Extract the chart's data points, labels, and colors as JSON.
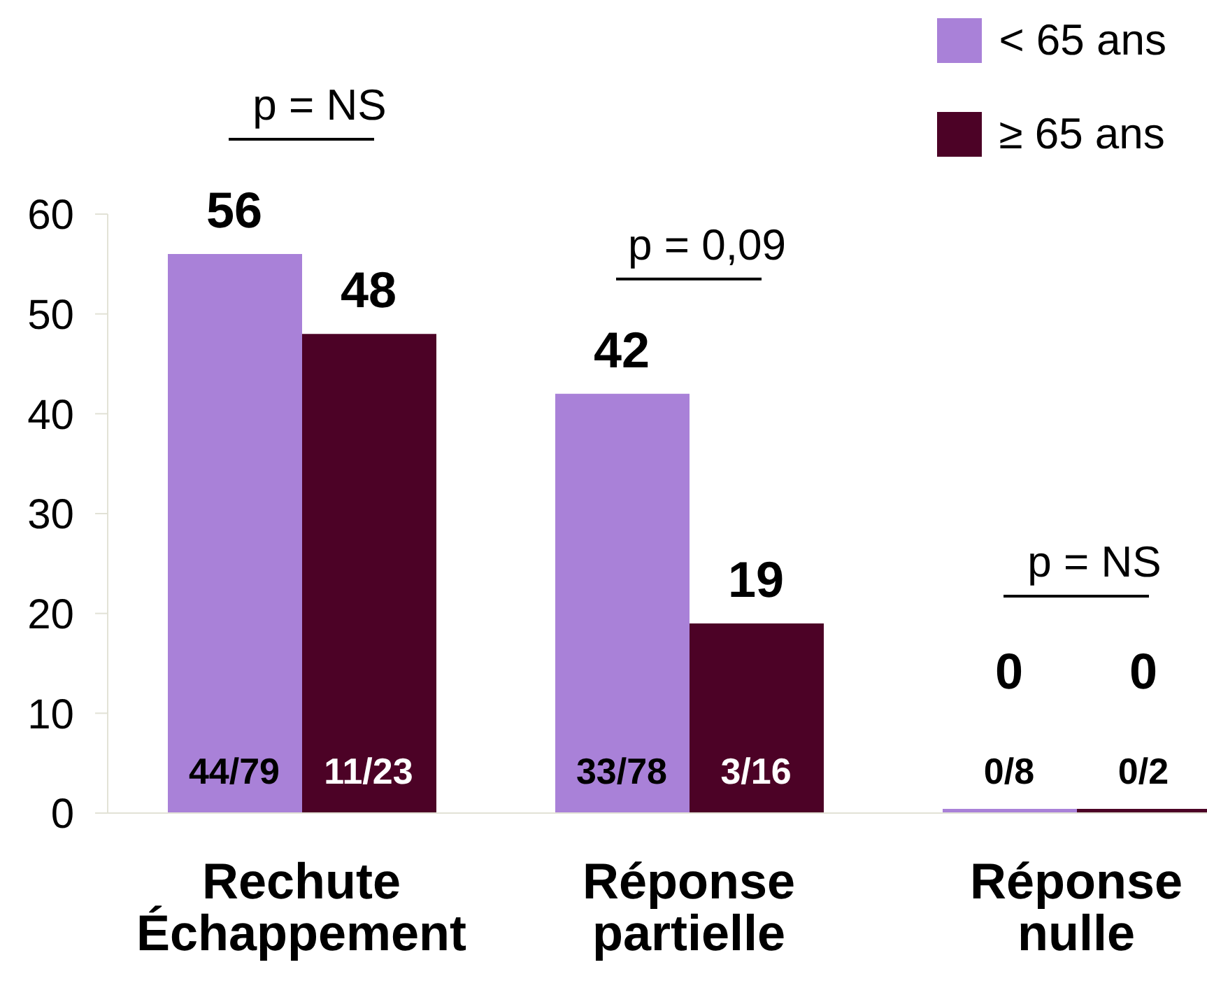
{
  "chart_data": {
    "type": "bar",
    "categories": [
      "Rechute Échappement",
      "Réponse partielle",
      "Réponse nulle"
    ],
    "series": [
      {
        "name": "< 65 ans",
        "color": "#a981d8",
        "values": [
          56,
          42,
          0
        ]
      },
      {
        "name": "≥ 65 ans",
        "color": "#4c0226",
        "values": [
          48,
          19,
          0
        ]
      }
    ],
    "ylim": [
      0,
      60
    ],
    "yticks": [
      0,
      10,
      20,
      30,
      40,
      50,
      60
    ],
    "legend": "top right",
    "data_labels": true,
    "annotations": [
      "p = NS",
      "p = 0,09",
      "p = NS",
      "44/79",
      "11/23",
      "33/78",
      "3/16",
      "0/8",
      "0/2"
    ]
  }
}
